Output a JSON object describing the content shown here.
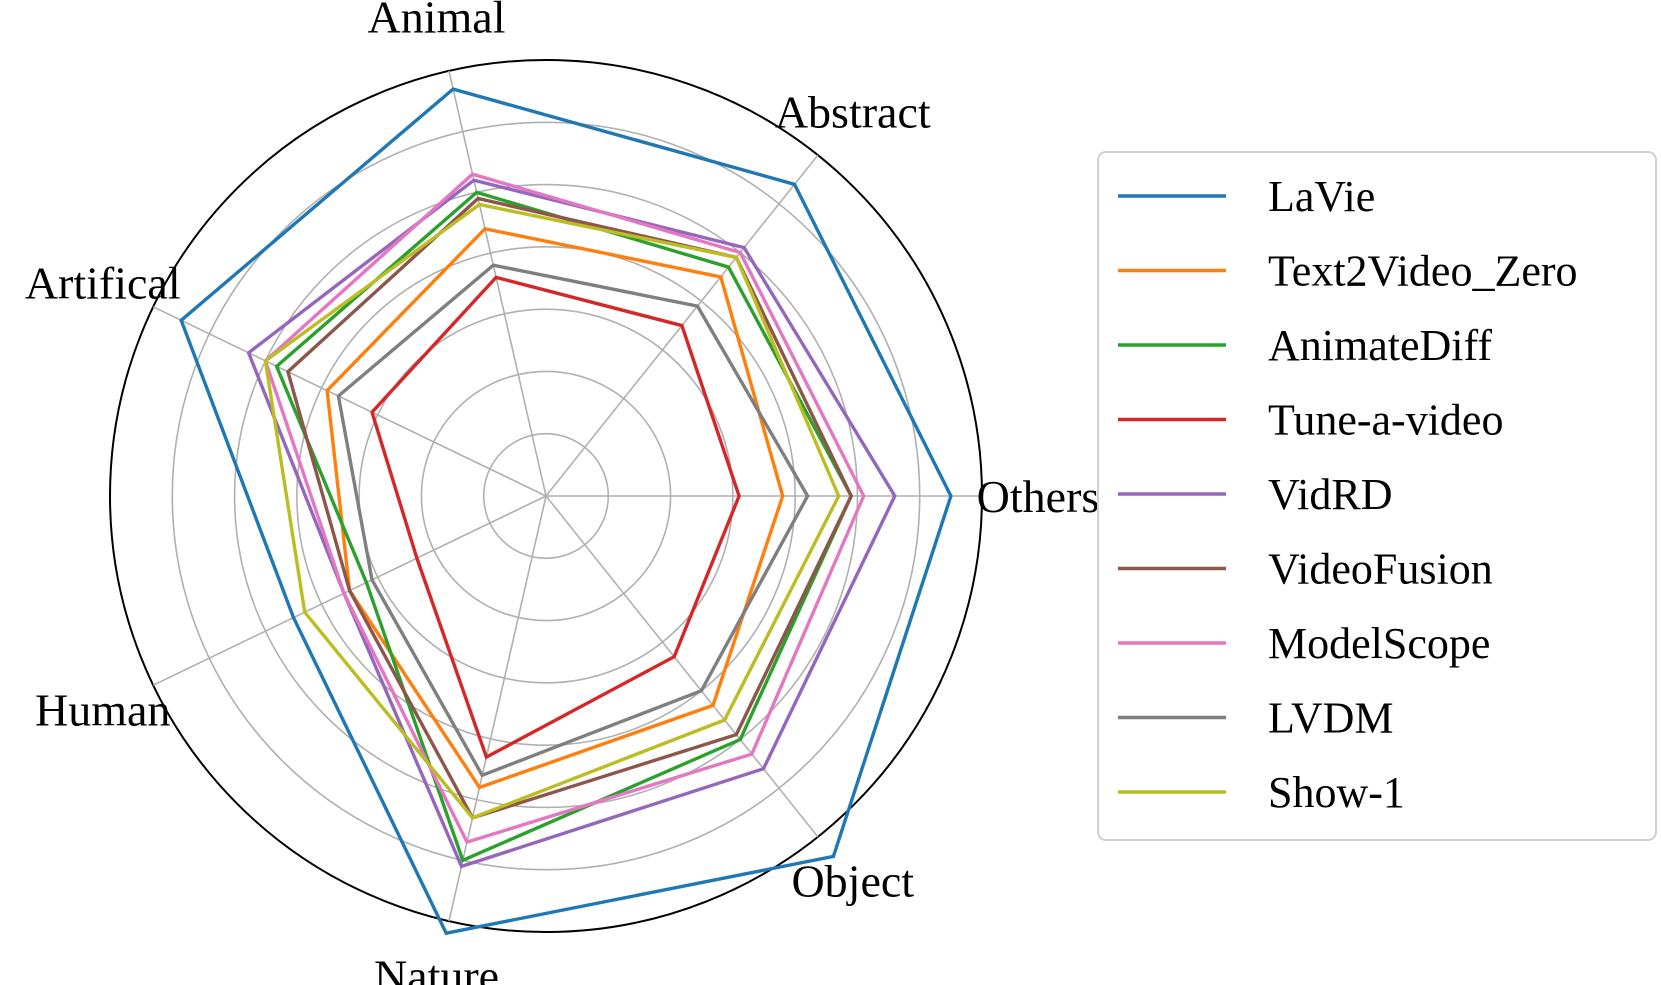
{
  "chart_data": {
    "type": "radar",
    "categories": [
      "Others",
      "Abstract",
      "Animal",
      "Artifical",
      "Human",
      "Nature",
      "Object"
    ],
    "rlim": [
      0,
      7
    ],
    "rticks": [
      1,
      2,
      3,
      4,
      5,
      6,
      7
    ],
    "tick_labels_shown": false,
    "grid": true,
    "legend": "right",
    "series": [
      {
        "name": "LaVie",
        "color": "#1f77b4",
        "values": [
          6.5,
          6.4,
          6.7,
          6.5,
          4.5,
          7.2,
          7.4
        ]
      },
      {
        "name": "Text2Video_Zero",
        "color": "#ff7f0e",
        "values": [
          3.8,
          4.5,
          4.4,
          3.9,
          3.5,
          4.8,
          4.3
        ]
      },
      {
        "name": "AnimateDiff",
        "color": "#2ca02c",
        "values": [
          4.9,
          4.7,
          5.0,
          4.8,
          3.2,
          6.0,
          5.0
        ]
      },
      {
        "name": "Tune-a-video",
        "color": "#d62728",
        "values": [
          3.1,
          3.5,
          3.6,
          3.1,
          2.3,
          4.3,
          3.3
        ]
      },
      {
        "name": "VidRD",
        "color": "#9467bd",
        "values": [
          5.6,
          5.1,
          5.2,
          5.3,
          3.6,
          6.1,
          5.6
        ]
      },
      {
        "name": "VideoFusion",
        "color": "#8c564b",
        "values": [
          4.9,
          4.9,
          4.9,
          4.6,
          3.5,
          5.3,
          4.9
        ]
      },
      {
        "name": "ModelScope",
        "color": "#e377c2",
        "values": [
          5.1,
          5.0,
          5.3,
          5.0,
          3.6,
          5.7,
          5.3
        ]
      },
      {
        "name": "LVDM",
        "color": "#7f7f7f",
        "values": [
          4.2,
          3.9,
          3.8,
          3.7,
          3.1,
          4.6,
          4.0
        ]
      },
      {
        "name": "Show-1",
        "color": "#bcbd22",
        "values": [
          4.7,
          4.9,
          4.8,
          5.0,
          4.3,
          5.3,
          4.6
        ]
      }
    ]
  }
}
